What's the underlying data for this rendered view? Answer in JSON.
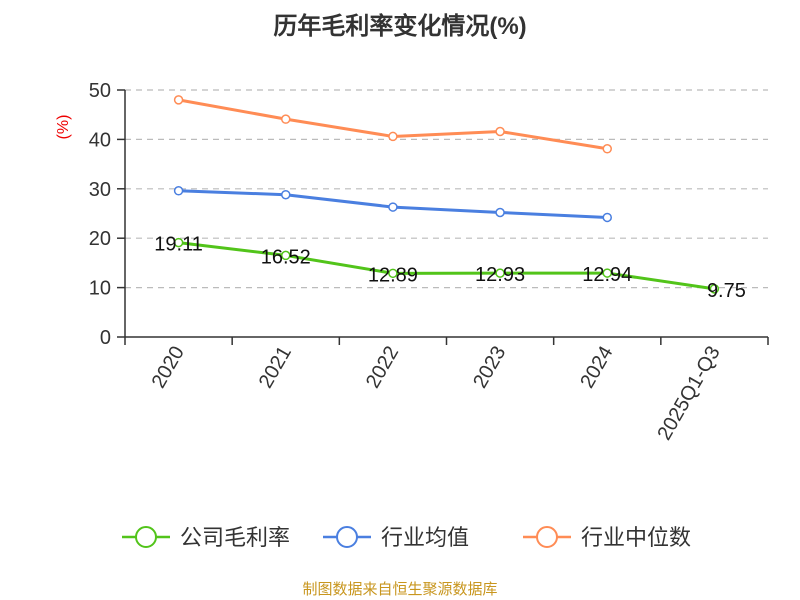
{
  "chart_data": {
    "type": "line",
    "title": "历年毛利率变化情况(%)",
    "ylabel": "(%)",
    "xlabel": "",
    "categories": [
      "2020",
      "2021",
      "2022",
      "2023",
      "2024",
      "2025Q1-Q3"
    ],
    "ylim": [
      0,
      50
    ],
    "yticks": [
      0,
      10,
      20,
      30,
      40,
      50
    ],
    "grid": true,
    "legend_position": "bottom",
    "series": [
      {
        "name": "公司毛利率",
        "color": "#52c41a",
        "values": [
          19.11,
          16.52,
          12.89,
          12.93,
          12.94,
          9.75
        ],
        "labels": [
          "19.11",
          "16.52",
          "12.89",
          "12.93",
          "12.94",
          "9.75"
        ]
      },
      {
        "name": "行业均值",
        "color": "#4a7fe0",
        "values": [
          29.6,
          28.8,
          26.3,
          25.2,
          24.2,
          null
        ]
      },
      {
        "name": "行业中位数",
        "color": "#ff8c55",
        "values": [
          48.0,
          44.1,
          40.6,
          41.6,
          38.1,
          null
        ]
      }
    ]
  },
  "source": "制图数据来自恒生聚源数据库"
}
